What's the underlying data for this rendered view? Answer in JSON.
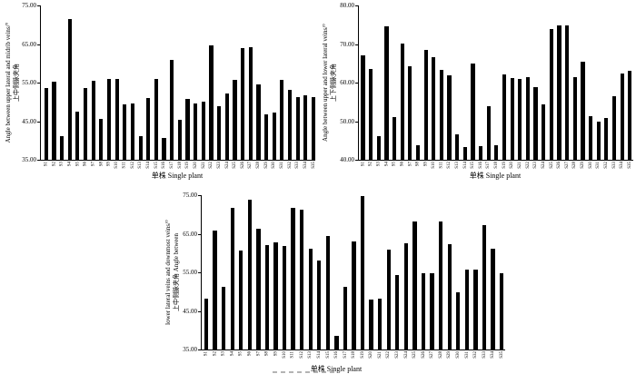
{
  "figure": {
    "background": "#ffffff",
    "bar_color": "#000000",
    "axis_color": "#000000"
  },
  "chart_data": [
    {
      "id": "angle-upper-lateral-midrib",
      "type": "bar",
      "title": "",
      "ylabel": "上中侧脉夹角 Angle between upper lateral and midrib veins/°",
      "ylabel_lines": [
        "Angle between upper lateral and midrib veins/°",
        "上中侧脉夹角"
      ],
      "xlabel": "单株 Single plant",
      "ylim": [
        35,
        75
      ],
      "yticks": [
        75,
        65,
        55,
        45,
        35
      ],
      "ytick_labels": [
        "75.00",
        "65.00",
        "55.00",
        "45.00",
        "35.00"
      ],
      "grid": false,
      "legend": "none",
      "categories": [
        "S1",
        "S2",
        "S3",
        "S4",
        "S5",
        "S6",
        "S7",
        "S8",
        "S9",
        "S10",
        "S11",
        "S12",
        "S13",
        "S14",
        "S15",
        "S16",
        "S17",
        "S18",
        "S19",
        "S20",
        "S21",
        "S22",
        "S23",
        "S24",
        "S25",
        "S26",
        "S27",
        "S28",
        "S29",
        "S30",
        "S31",
        "S32",
        "S33",
        "S34",
        "S35"
      ],
      "values": [
        53.5,
        55.3,
        41.1,
        71.4,
        47.5,
        53.5,
        55.5,
        45.5,
        56.0,
        55.9,
        49.3,
        49.6,
        41.1,
        51.0,
        56.0,
        40.7,
        60.9,
        45.3,
        50.8,
        49.7,
        50.0,
        64.7,
        48.8,
        52.1,
        55.8,
        63.9,
        64.1,
        54.5,
        46.7,
        47.2,
        55.7,
        53.2,
        51.3,
        51.8,
        51.3
      ]
    },
    {
      "id": "angle-upper-lower-lateral",
      "type": "bar",
      "title": "",
      "ylabel": "上下侧脉夹角 Angle between upper and lower lateral veins/°",
      "ylabel_lines": [
        "Angle between upper and lower lateral veins/°",
        "上下侧脉夹角"
      ],
      "xlabel": "单株 Single plant",
      "ylim": [
        40,
        80
      ],
      "yticks": [
        80,
        70,
        60,
        50,
        40
      ],
      "ytick_labels": [
        "80.00",
        "70.00",
        "60.00",
        "50.00",
        "40.00"
      ],
      "grid": false,
      "legend": "none",
      "categories": [
        "S1",
        "S2",
        "S3",
        "S4",
        "S5",
        "S6",
        "S7",
        "S8",
        "S9",
        "S10",
        "S11",
        "S12",
        "S13",
        "S14",
        "S15",
        "S16",
        "S17",
        "S18",
        "S19",
        "S20",
        "S21",
        "S22",
        "S23",
        "S24",
        "S25",
        "S26",
        "S27",
        "S28",
        "S29",
        "S30",
        "S31",
        "S32",
        "S33",
        "S34",
        "S35"
      ],
      "values": [
        67.0,
        63.5,
        46.2,
        74.5,
        51.0,
        70.2,
        64.2,
        43.8,
        68.4,
        66.5,
        63.2,
        62.0,
        46.6,
        43.3,
        65.0,
        43.5,
        53.8,
        43.7,
        62.2,
        61.2,
        61.0,
        61.4,
        58.8,
        54.4,
        73.9,
        74.9,
        74.9,
        61.4,
        65.4,
        51.3,
        50.0,
        50.9,
        56.4,
        62.4,
        63.0
      ]
    },
    {
      "id": "angle-lower-lateral-downmost",
      "type": "bar",
      "title": "",
      "ylabel": "上中侧脉夹角 Angle between lower lateral veins and downmost veins/°",
      "ylabel_lines": [
        "lower lateral veins and downmost veins/°",
        "上中侧脉夹角 Angle between"
      ],
      "xlabel": "单株 Single plant",
      "ylim": [
        35,
        75
      ],
      "yticks": [
        75,
        65,
        55,
        45,
        35
      ],
      "ytick_labels": [
        "75.00",
        "65.00",
        "55.00",
        "45.00",
        "35.00"
      ],
      "grid": false,
      "legend": "none",
      "categories": [
        "S1",
        "S2",
        "S3",
        "S4",
        "S5",
        "S6",
        "S7",
        "S8",
        "S9",
        "S10",
        "S11",
        "S12",
        "S13",
        "S14",
        "S15",
        "S16",
        "S17",
        "S18",
        "S19",
        "S20",
        "S21",
        "S22",
        "S23",
        "S24",
        "S25",
        "S26",
        "S27",
        "S28",
        "S29",
        "S30",
        "S31",
        "S32",
        "S33",
        "S34",
        "S35"
      ],
      "values": [
        48.3,
        65.9,
        51.4,
        71.8,
        60.8,
        73.8,
        66.3,
        62.2,
        62.8,
        61.8,
        71.7,
        71.4,
        61.1,
        58.1,
        64.6,
        38.7,
        51.3,
        63.1,
        74.9,
        48.0,
        48.2,
        61.0,
        54.3,
        62.5,
        68.2,
        54.9,
        54.9,
        68.2,
        62.3,
        49.9,
        55.7,
        55.7,
        67.3,
        61.2,
        54.8
      ]
    }
  ]
}
